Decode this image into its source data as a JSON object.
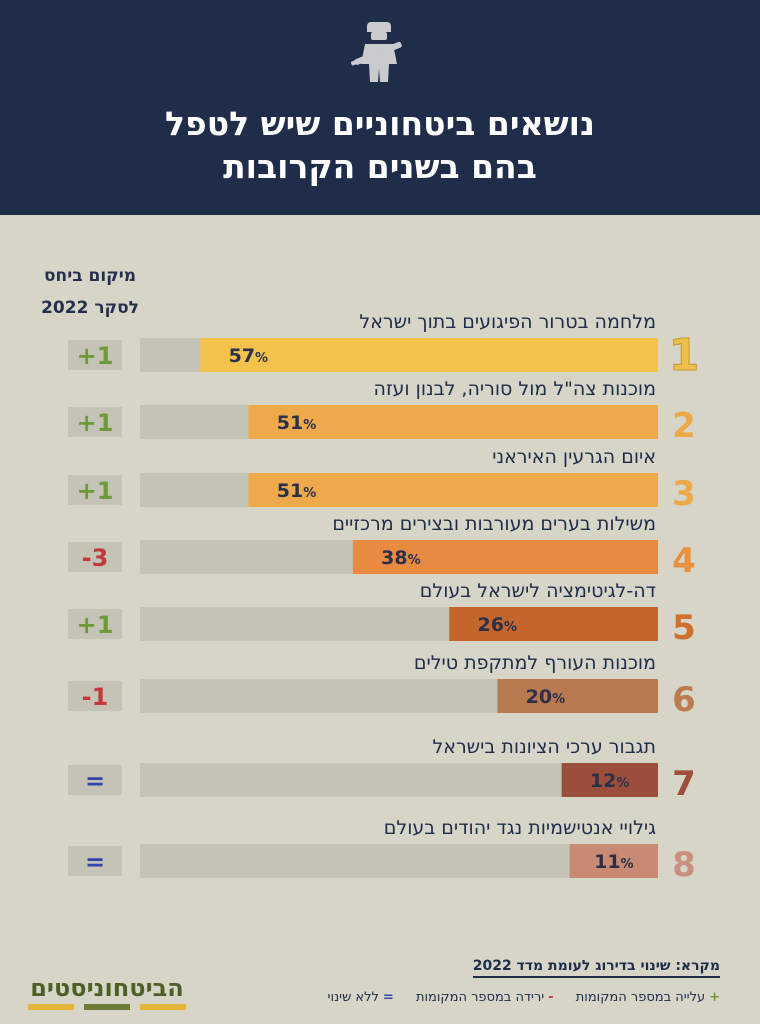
{
  "header": {
    "title_line1": "נושאים ביטחוניים שיש לטפל",
    "title_line2": "בהם בשנים הקרובות"
  },
  "rank_change_header": {
    "line1": "מיקום ביחס",
    "line2": "לסקר 2022"
  },
  "chart_data": {
    "type": "bar",
    "title": "נושאים ביטחוניים שיש לטפל בהם בשנים הקרובות",
    "xlabel": "",
    "ylabel": "",
    "xlim": [
      0,
      100
    ],
    "categories": [
      "מלחמה בטרור הפיגועים בתוך ישראל",
      "מוכנות צה\"ל מול סוריה, לבנון ועזה",
      "איום הגרעין האיראני",
      "משילות בערים מעורבות ובצירים מרכזיים",
      "דה-לגיטימציה לישראל בעולם",
      "מוכנות העורף למתקפת טילים",
      "תגבור ערכי הציונות בישראל",
      "גילויי אנטישמיות נגד יהודים בעולם"
    ],
    "ranks": [
      "1",
      "2",
      "3",
      "4",
      "5",
      "6",
      "7",
      "8"
    ],
    "values": [
      57,
      51,
      51,
      38,
      26,
      20,
      12,
      11
    ],
    "value_labels": [
      "57",
      "51",
      "51",
      "38",
      "26",
      "20",
      "12",
      "11"
    ],
    "value_suffix": "%",
    "rank_changes": [
      "+1",
      "+1",
      "+1",
      "-3",
      "+1",
      "-1",
      "=",
      "="
    ],
    "bar_colors": [
      "#f2c24c",
      "#eeaa4a",
      "#eeaa4a",
      "#e88a40",
      "#c4662c",
      "#b87a4e",
      "#9b4e3c",
      "#c88a72"
    ],
    "rank_colors": [
      "#ecc04a",
      "#eda848",
      "#eda848",
      "#e8913f",
      "#d0702e",
      "#bb7c50",
      "#9b4e3c",
      "#c99080"
    ],
    "change_colors": {
      "up": "#6e9a3a",
      "down": "#c23a3a",
      "same": "#3344aa"
    }
  },
  "legend": {
    "title": "מקרא: שינוי בדירוג לעומת מדד 2022",
    "items": [
      {
        "symbol": "+",
        "label": "עלייה במספר המקומות"
      },
      {
        "symbol": "-",
        "label": "ירידה במספר המקומות"
      },
      {
        "symbol": "=",
        "label": "ללא שינוי"
      }
    ]
  },
  "logo": {
    "text": "הביטחוניסטים"
  }
}
